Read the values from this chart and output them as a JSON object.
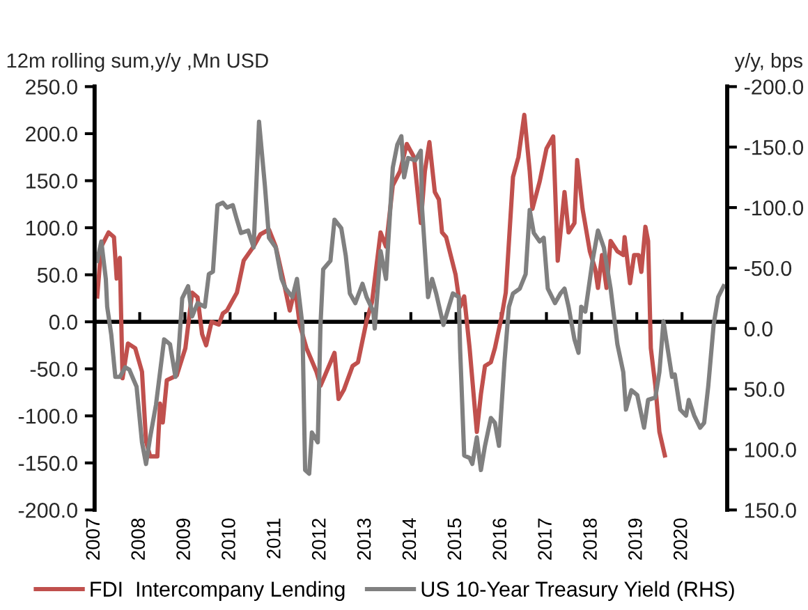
{
  "chart_data": {
    "type": "line",
    "ylabel": "12m rolling sum,y/y ,Mn USD",
    "y2label": "y/y, bps",
    "xlim": [
      2007,
      2021
    ],
    "xticks": [
      2007,
      2008,
      2009,
      2010,
      2011,
      2012,
      2013,
      2014,
      2015,
      2016,
      2017,
      2018,
      2019,
      2020
    ],
    "ylim": [
      -200,
      250
    ],
    "yticks": [
      {
        "value": -200,
        "label": "-200.0"
      },
      {
        "value": -150,
        "label": "-150.0"
      },
      {
        "value": -100,
        "label": "-100.0"
      },
      {
        "value": -50,
        "label": "-50.0"
      },
      {
        "value": 0,
        "label": "0.0"
      },
      {
        "value": 50,
        "label": "50.0"
      },
      {
        "value": 100,
        "label": "100.0"
      },
      {
        "value": 150,
        "label": "150.0"
      },
      {
        "value": 200,
        "label": "200.0"
      },
      {
        "value": 250,
        "label": "250.0"
      }
    ],
    "y2lim": [
      150,
      -200
    ],
    "y2ticks": [
      {
        "value": 150,
        "label": "150.0"
      },
      {
        "value": 100,
        "label": "100.0"
      },
      {
        "value": 50,
        "label": "50.0"
      },
      {
        "value": 0,
        "label": "0.0"
      },
      {
        "value": -50,
        "label": "-50.0"
      },
      {
        "value": -100,
        "label": "-100.0"
      },
      {
        "value": -150,
        "label": "-150.0"
      },
      {
        "value": -200,
        "label": "-200.0"
      }
    ],
    "grid": false,
    "ref_lines": [
      {
        "axis": "y",
        "value": 0,
        "color": "#000000"
      }
    ],
    "legend": "bottom",
    "marker": "none",
    "line_style": "solid",
    "series": [
      {
        "name": "FDI  Intercompany Lending",
        "color": "#c0504d",
        "x": [
          2007.06,
          2007.15,
          2007.31,
          2007.43,
          2007.49,
          2007.56,
          2007.62,
          2007.74,
          2007.9,
          2008.05,
          2008.14,
          2008.23,
          2008.39,
          2008.45,
          2008.51,
          2008.6,
          2008.82,
          2009.01,
          2009.16,
          2009.28,
          2009.38,
          2009.47,
          2009.59,
          2009.75,
          2009.84,
          2009.93,
          2010.15,
          2010.3,
          2010.52,
          2010.67,
          2010.86,
          2011.01,
          2011.17,
          2011.32,
          2011.44,
          2011.54,
          2011.69,
          2011.91,
          2012.0,
          2012.09,
          2012.31,
          2012.4,
          2012.52,
          2012.71,
          2012.83,
          2013.02,
          2013.14,
          2013.33,
          2013.45,
          2013.6,
          2013.76,
          2013.91,
          2014.07,
          2014.22,
          2014.31,
          2014.41,
          2014.53,
          2014.62,
          2014.69,
          2014.78,
          2014.99,
          2015.09,
          2015.18,
          2015.3,
          2015.46,
          2015.55,
          2015.64,
          2015.77,
          2015.86,
          2016.01,
          2016.1,
          2016.26,
          2016.38,
          2016.51,
          2016.63,
          2016.69,
          2016.85,
          2017.0,
          2017.15,
          2017.25,
          2017.4,
          2017.49,
          2017.62,
          2017.68,
          2017.8,
          2017.96,
          2018.08,
          2018.14,
          2018.23,
          2018.33,
          2018.42,
          2018.57,
          2018.7,
          2018.73,
          2018.85,
          2018.94,
          2019.04,
          2019.1,
          2019.19,
          2019.25,
          2019.31,
          2019.41,
          2019.5,
          2019.62
        ],
        "values": [
          27,
          80,
          95,
          90,
          46,
          68,
          -60,
          -23,
          -28,
          -53,
          -127,
          -143,
          -143,
          -87,
          -107,
          -62,
          -57,
          -28,
          31,
          26,
          -13,
          -25,
          0,
          -3,
          9,
          12,
          31,
          65,
          80,
          93,
          98,
          80,
          46,
          12,
          36,
          -3,
          -28,
          -53,
          -68,
          -58,
          -33,
          -82,
          -72,
          -47,
          -43,
          1,
          21,
          95,
          80,
          145,
          160,
          189,
          175,
          105,
          160,
          191,
          138,
          130,
          95,
          90,
          50,
          16,
          27,
          -28,
          -117,
          -77,
          -47,
          -43,
          -28,
          6,
          31,
          154,
          175,
          220,
          160,
          120,
          149,
          184,
          197,
          65,
          138,
          95,
          105,
          172,
          120,
          75,
          56,
          36,
          71,
          36,
          86,
          75,
          71,
          90,
          41,
          71,
          71,
          53,
          101,
          86,
          -28,
          -68,
          -117,
          -142
        ]
      },
      {
        "name": "US 10-Year Treasury Yield (RHS)",
        "color": "#808080",
        "axis": "y2",
        "x": [
          2007.06,
          2007.15,
          2007.25,
          2007.28,
          2007.37,
          2007.46,
          2007.56,
          2007.68,
          2007.77,
          2007.86,
          2007.93,
          2008.05,
          2008.14,
          2008.23,
          2008.36,
          2008.54,
          2008.67,
          2008.79,
          2008.85,
          2008.94,
          2009.07,
          2009.16,
          2009.28,
          2009.44,
          2009.53,
          2009.62,
          2009.72,
          2009.84,
          2009.93,
          2010.06,
          2010.15,
          2010.24,
          2010.4,
          2010.52,
          2010.64,
          2010.77,
          2010.86,
          2011.01,
          2011.14,
          2011.23,
          2011.38,
          2011.48,
          2011.6,
          2011.66,
          2011.75,
          2011.81,
          2011.94,
          2012.0,
          2012.06,
          2012.22,
          2012.31,
          2012.46,
          2012.56,
          2012.65,
          2012.77,
          2012.93,
          2013.02,
          2013.17,
          2013.2,
          2013.33,
          2013.45,
          2013.6,
          2013.7,
          2013.79,
          2013.85,
          2013.94,
          2014.1,
          2014.22,
          2014.25,
          2014.38,
          2014.47,
          2014.56,
          2014.72,
          2014.84,
          2014.93,
          2015.06,
          2015.09,
          2015.18,
          2015.3,
          2015.36,
          2015.46,
          2015.55,
          2015.64,
          2015.77,
          2015.86,
          2015.95,
          2016.07,
          2016.17,
          2016.26,
          2016.41,
          2016.54,
          2016.63,
          2016.72,
          2016.85,
          2016.94,
          2017.03,
          2017.19,
          2017.31,
          2017.4,
          2017.49,
          2017.62,
          2017.71,
          2017.77,
          2017.86,
          2018.02,
          2018.14,
          2018.27,
          2018.42,
          2018.57,
          2018.7,
          2018.76,
          2018.88,
          2019.01,
          2019.16,
          2019.25,
          2019.41,
          2019.5,
          2019.59,
          2019.65,
          2019.78,
          2019.84,
          2019.96,
          2020.09,
          2020.15,
          2020.27,
          2020.4,
          2020.49,
          2020.58,
          2020.7,
          2020.8,
          2020.92
        ],
        "values": [
          -56,
          -72,
          -41,
          -18,
          5,
          40,
          40,
          32,
          34,
          42,
          48,
          94,
          112,
          90,
          63,
          9,
          13,
          40,
          25,
          -25,
          -35,
          -10,
          -21,
          -18,
          -45,
          -47,
          -102,
          -104,
          -100,
          -102,
          -90,
          -79,
          -81,
          -67,
          -171,
          -118,
          -75,
          -67,
          -41,
          -33,
          -26,
          -41,
          -3,
          117,
          120,
          86,
          94,
          -3,
          -49,
          -56,
          -90,
          -83,
          -60,
          -29,
          -21,
          -37,
          -26,
          -14,
          0,
          -64,
          -41,
          -133,
          -152,
          -159,
          -125,
          -141,
          -139,
          -147,
          -98,
          -26,
          -41,
          -29,
          -3,
          -18,
          -29,
          -26,
          17,
          105,
          107,
          112,
          90,
          117,
          97,
          74,
          78,
          97,
          28,
          -18,
          -29,
          -33,
          -45,
          -98,
          -79,
          -72,
          -75,
          -33,
          -21,
          -29,
          -33,
          -18,
          9,
          20,
          -18,
          -14,
          -56,
          -81,
          -67,
          -33,
          13,
          36,
          67,
          51,
          55,
          82,
          59,
          57,
          36,
          -6,
          9,
          40,
          38,
          67,
          72,
          59,
          72,
          82,
          78,
          48,
          -3,
          -26,
          -35
        ]
      }
    ]
  }
}
